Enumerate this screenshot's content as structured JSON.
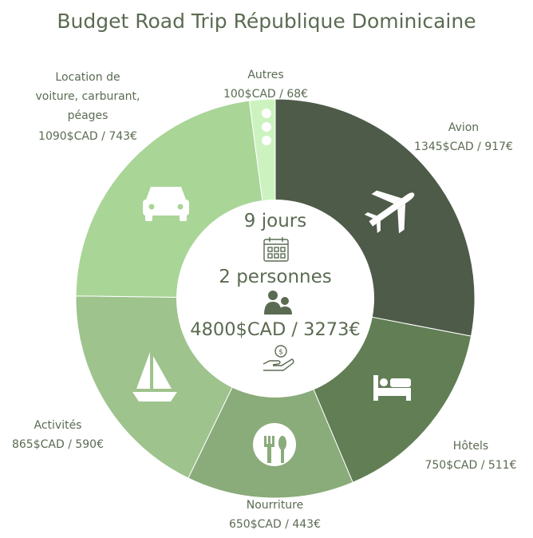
{
  "colors": {
    "background": "#ffffff",
    "text": "#5b6b52",
    "center_fill": "#ffffff",
    "icon_white": "#ffffff",
    "center_icon": "#5b6b52"
  },
  "chart_data": {
    "type": "pie",
    "title": "Budget Road Trip République Dominicaine",
    "donut": true,
    "total": 4800,
    "slices": [
      {
        "label": "Avion",
        "cad": 1345,
        "eur": 917,
        "value_label": "1345$CAD / 917€",
        "color": "#4f5b49",
        "icon": "airplane-icon"
      },
      {
        "label": "Hôtels",
        "cad": 750,
        "eur": 511,
        "value_label": "750$CAD / 511€",
        "color": "#617e55",
        "icon": "bed-icon"
      },
      {
        "label": "Nourriture",
        "cad": 650,
        "eur": 443,
        "value_label": "650$CAD / 443€",
        "color": "#8aab7a",
        "icon": "fork-spoon-icon"
      },
      {
        "label": "Activités",
        "cad": 865,
        "eur": 590,
        "value_label": "865$CAD / 590€",
        "color": "#9ec38d",
        "icon": "sailboat-icon"
      },
      {
        "label": "Location de voiture, carburant, péages",
        "label_lines": [
          "Location de",
          "voiture, carburant,",
          "péages"
        ],
        "cad": 1090,
        "eur": 743,
        "value_label": "1090$CAD / 743€",
        "color": "#a9d597",
        "icon": "car-icon"
      },
      {
        "label": "Autres",
        "cad": 100,
        "eur": 68,
        "value_label": "100$CAD / 68€",
        "color": "#ccf3bf",
        "icon": "dots-icon"
      }
    ],
    "center": {
      "days": "9 jours",
      "people": "2 personnes",
      "total_label": "4800$CAD / 3273€"
    }
  }
}
